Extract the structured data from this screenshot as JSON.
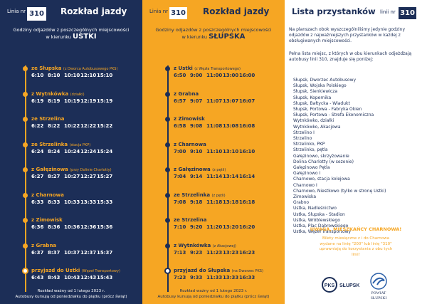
{
  "panel1": {
    "line_label": "Linia nr",
    "line_number": "310",
    "title": "Rozkład jazdy",
    "intro_text": "Godziny odjazdów z poszczególnych miejscowości",
    "direction_prefix": "w kierunku",
    "direction": "USTKI",
    "stops": [
      {
        "name": "ze Słupska",
        "note": "(z Dworca Autobusowego PKS)",
        "times": [
          "6:10",
          "8:10",
          "10:10",
          "12:10",
          "15:10"
        ]
      },
      {
        "name": "z Wytnkówka",
        "note": "(działki)",
        "times": [
          "6:19",
          "8:19",
          "10:19",
          "12:19",
          "15:19"
        ]
      },
      {
        "name": "ze Strzelina",
        "note": "",
        "times": [
          "6:22",
          "8:22",
          "10:22",
          "12:22",
          "15:22"
        ]
      },
      {
        "name": "ze Strzelinka",
        "note": "(stacja PKP)",
        "times": [
          "6:24",
          "8:24",
          "10:24",
          "12:24",
          "15:24"
        ]
      },
      {
        "name": "z Gałęzinowa",
        "note": "(przy Dolinie Charlotty)",
        "times": [
          "6:27",
          "8:27",
          "10:27",
          "12:27",
          "15:27"
        ]
      },
      {
        "name": "z Charnowa",
        "note": "",
        "times": [
          "6:33",
          "8:33",
          "10:33",
          "13:33",
          "15:33"
        ]
      },
      {
        "name": "z Zimowisk",
        "note": "",
        "times": [
          "6:36",
          "8:36",
          "10:36",
          "12:36",
          "15:36"
        ]
      },
      {
        "name": "z Grabna",
        "note": "",
        "times": [
          "6:37",
          "8:37",
          "10:37",
          "12:37",
          "15:37"
        ]
      },
      {
        "name": "przyjazd do Ustki",
        "note": "(Węzeł Transportowy)",
        "times": [
          "6:43",
          "8:43",
          "10:43",
          "12:43",
          "15:43"
        ]
      }
    ],
    "footer_line1": "Rozkład ważny od 1 lutego 2023 r.",
    "footer_line2": "Autobusy kursują od poniedziałku do piątku (prócz świąt)"
  },
  "panel2": {
    "line_label": "Linia nr",
    "line_number": "310",
    "title": "Rozkład jazdy",
    "intro_text": "Godziny odjazdów z poszczególnych miejscowości",
    "direction_prefix": "w kierunku",
    "direction": "SŁUPSKA",
    "stops": [
      {
        "name": "z Ustki",
        "note": "(z Węzła Transportowego)",
        "times": [
          "6:50",
          "9:00",
          "11:00",
          "13:00",
          "16:00"
        ]
      },
      {
        "name": "z Grabna",
        "note": "",
        "times": [
          "6:57",
          "9:07",
          "11:07",
          "13:07",
          "16:07"
        ]
      },
      {
        "name": "z Zimowisk",
        "note": "",
        "times": [
          "6:58",
          "9:08",
          "11:08",
          "13:08",
          "16:08"
        ]
      },
      {
        "name": "z Charnowa",
        "note": "",
        "times": [
          "7:00",
          "9:10",
          "11:10",
          "13:10",
          "16:10"
        ]
      },
      {
        "name": "z Gałęzinowa",
        "note": "(z pętli)",
        "times": [
          "7:04",
          "9:14",
          "11:14",
          "13:14",
          "16:14"
        ]
      },
      {
        "name": "ze Strzelinka",
        "note": "(z pętli)",
        "times": [
          "7:08",
          "9:18",
          "11:18",
          "13:18",
          "16:18"
        ]
      },
      {
        "name": "ze Strzelina",
        "note": "",
        "times": [
          "7:10",
          "9:20",
          "11:20",
          "13:20",
          "16:20"
        ]
      },
      {
        "name": "z Wytnkówka",
        "note": "(z Akacjowej)",
        "times": [
          "7:13",
          "9:23",
          "11:23",
          "13:23",
          "16:23"
        ]
      },
      {
        "name": "przyjazd do Słupska",
        "note": "(na Dworzec PKS)",
        "times": [
          "7:23",
          "9:33",
          "11:33",
          "13:33",
          "16:33"
        ]
      }
    ],
    "footer_line1": "Rozkład ważny od 1 lutego 2023 r.",
    "footer_line2": "Autobusy kursują od poniedziałku do piątku (prócz świąt)"
  },
  "panel3": {
    "title": "Lista przystanków",
    "line_label": "linii nr",
    "line_number": "310",
    "para1": "Na planszach obok wyszczególniliśmy jedynie godziny odjazdów z najważniejszych przystanków w każdej z obsługiwanych miejscowości.",
    "para2": "Pełna lista miejsc, z których w obu kierunkach odjeżdżają autobusy linii 310, znajduje się poniżej:",
    "stops": [
      "Słupsk, Dworzec Autobusowy",
      "Słupsk, Wojska Polskiego",
      "Słupsk, Sienkiewicza",
      "Słupsk, Kopernika",
      "Słupsk, Bałtycka - Wiadukt",
      "Słupsk, Portowa - Fabryka Okien",
      "Słupsk, Portowa - Strefa Ekonomiczna",
      "Wytnkówko, działki",
      "Wytnkówko, Akacjowa",
      "Strzelino I",
      "Strzelino",
      "Strzelinko, PKP",
      "Strzelinko, pętla",
      "Gałęzinowo, skrzyżowanie",
      "Dolina Charlotty (w sezonie)",
      "Gałęzinowo Pętla",
      "Gałęzinowo I",
      "Charnowo, stacja kolejowa",
      "Charnowo I",
      "Charnowo, Niestkowo (tylko w stronę Ustki)",
      "Zimowiska",
      "Grabno",
      "Ustka, Nadleśnictwo",
      "Ustka, Słupska - Stadion",
      "Ustka, Wróblewskiego",
      "Ustka, Plac Dąbrowskiego",
      "Ustka, Węzeł Transportowy"
    ],
    "warning_title": "UWAGA, MIESZKAŃCY CHARNOWA!",
    "warning_text": "Bilety miesięczne z i do Charnowa wydane na linię \"200\" lub linię \"310\" uprawniają do korzystania z obu tych linii!",
    "logo1_text": "PKS",
    "logo1_label": "SŁUPSK",
    "logo2_line1": "POWIAT",
    "logo2_line2": "SŁUPSKI"
  },
  "colors": {
    "navy": "#1c2e57",
    "orange": "#f6a623",
    "white": "#ffffff"
  }
}
